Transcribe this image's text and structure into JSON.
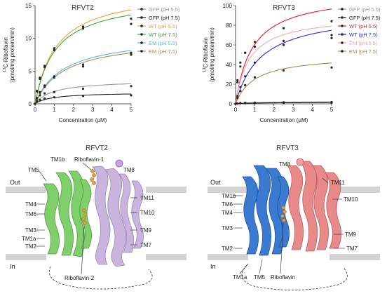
{
  "colors": {
    "gfp55": "#9a9a9a",
    "gfp75": "#222222",
    "rfvt2_wt55": "#f0a030",
    "rfvt2_wt75": "#3aaa3a",
    "rfvt2_em55": "#5ab4e6",
    "rfvt2_em75": "#b08a50",
    "rfvt3_wt55": "#e0202a",
    "rfvt3_wt75": "#2a2ae0",
    "rfvt3_em55": "#f2a8b4",
    "rfvt3_em75": "#b08a50",
    "rfvt2_struct_a": "#7fcf6a",
    "rfvt2_struct_b": "#c8b4dc",
    "rfvt3_struct_a": "#3a7ad0",
    "rfvt3_struct_b": "#e88a8a",
    "ligand": "#e0a040"
  },
  "chart_data": [
    {
      "type": "scatter",
      "title": "RFVT2",
      "xlabel": "Concentration (μM)",
      "ylabel": "13C-Riboflavin (pmol/mg protein/min)",
      "ylabel_sup": "13",
      "ylabel_rest": "C-Riboflavin",
      "ylabel_line2": "(pmol/mg protein/min)",
      "xlim": [
        0,
        5
      ],
      "ylim": [
        0,
        15
      ],
      "xticks": [
        0,
        1,
        2,
        3,
        4,
        5
      ],
      "yticks": [
        0,
        5,
        10,
        15
      ],
      "x": [
        0,
        0.1,
        0.25,
        0.5,
        1,
        2.5,
        5
      ],
      "legend_position": "right",
      "series": [
        {
          "name": "GFP (pH 5.5)",
          "color_key": "gfp55",
          "values": [
            0,
            0.9,
            1.3,
            1.6,
            1.8,
            2.3,
            2.7
          ]
        },
        {
          "name": "GFP (pH 7.5)",
          "color_key": "gfp75",
          "values": [
            0,
            0.4,
            0.6,
            0.8,
            1.0,
            1.2,
            1.3
          ]
        },
        {
          "name": "WT (pH 5.5)",
          "color_key": "rfvt2_wt55",
          "values": [
            0,
            2.0,
            4.0,
            5.8,
            8.5,
            11.8,
            13.0
          ]
        },
        {
          "name": "WT (pH 7.5)",
          "color_key": "rfvt2_wt75",
          "values": [
            0,
            1.9,
            3.8,
            5.6,
            8.2,
            11.5,
            12.2
          ]
        },
        {
          "name": "EM (pH 5.5)",
          "color_key": "rfvt2_em55",
          "values": [
            0,
            0.9,
            1.8,
            2.8,
            4.2,
            6.0,
            7.8
          ]
        },
        {
          "name": "EM (pH 7.5)",
          "color_key": "rfvt2_em75",
          "values": [
            0,
            0.8,
            1.7,
            2.6,
            4.0,
            5.7,
            7.5
          ]
        }
      ]
    },
    {
      "type": "scatter",
      "title": "RFVT3",
      "xlabel": "Concentration (μM)",
      "ylabel": "13C-Riboflavin (pmol/mg protein/min)",
      "ylabel_sup": "13",
      "ylabel_rest": "C-Riboflavin",
      "ylabel_line2": "(pmol/mg protein/min)",
      "xlim": [
        0,
        5
      ],
      "ylim": [
        0,
        100
      ],
      "xticks": [
        0,
        1,
        2,
        3,
        4,
        5
      ],
      "yticks": [
        0,
        20,
        40,
        60,
        80,
        100
      ],
      "x": [
        0,
        0.1,
        0.25,
        0.5,
        1,
        2.5,
        5
      ],
      "legend_position": "right",
      "series": [
        {
          "name": "GFP (pH 5.5)",
          "color_key": "gfp55",
          "values": [
            0,
            0.5,
            0.8,
            1.0,
            1.2,
            1.5,
            1.8
          ]
        },
        {
          "name": "GFP (pH 7.5)",
          "color_key": "gfp75",
          "values": [
            0,
            0.3,
            0.5,
            0.6,
            0.8,
            1.0,
            1.1
          ]
        },
        {
          "name": "WT (pH 5.5)",
          "color_key": "rfvt3_wt55",
          "values": [
            0,
            22,
            38,
            52,
            63,
            77,
            84
          ]
        },
        {
          "name": "WT (pH 7.5)",
          "color_key": "rfvt3_wt75",
          "values": [
            0,
            8,
            17,
            28,
            42,
            60,
            70
          ]
        },
        {
          "name": "EM (pH 5.5)",
          "color_key": "rfvt3_em55",
          "values": [
            0,
            24,
            42,
            52,
            58,
            64,
            67
          ]
        },
        {
          "name": "EM (pH 7.5)",
          "color_key": "rfvt3_em75",
          "values": [
            0,
            6,
            13,
            19,
            27,
            34,
            37
          ]
        }
      ]
    }
  ],
  "structures": {
    "rfvt2": {
      "title": "RFVT2",
      "out_label": "Out",
      "in_label": "In",
      "left_labels": [
        "TM5",
        "TM4",
        "TM6",
        "TM3",
        "TM1a",
        "TM2"
      ],
      "top_labels": [
        "TM1b",
        "Riboflavin-1"
      ],
      "right_labels": [
        "TM8",
        "TM11",
        "TM10",
        "TM9",
        "TM7"
      ],
      "bottom_labels": [
        "Riboflavin-2"
      ]
    },
    "rfvt3": {
      "title": "RFVT3",
      "out_label": "Out",
      "in_label": "In",
      "left_labels": [
        "TM1b",
        "TM6",
        "TM4",
        "TM3",
        "TM2"
      ],
      "top_labels": [
        "TM8"
      ],
      "right_labels": [
        "TM11",
        "TM10",
        "TM9",
        "TM7"
      ],
      "bottom_labels": [
        "TM1a",
        "TM5",
        "Riboflavin"
      ]
    }
  }
}
